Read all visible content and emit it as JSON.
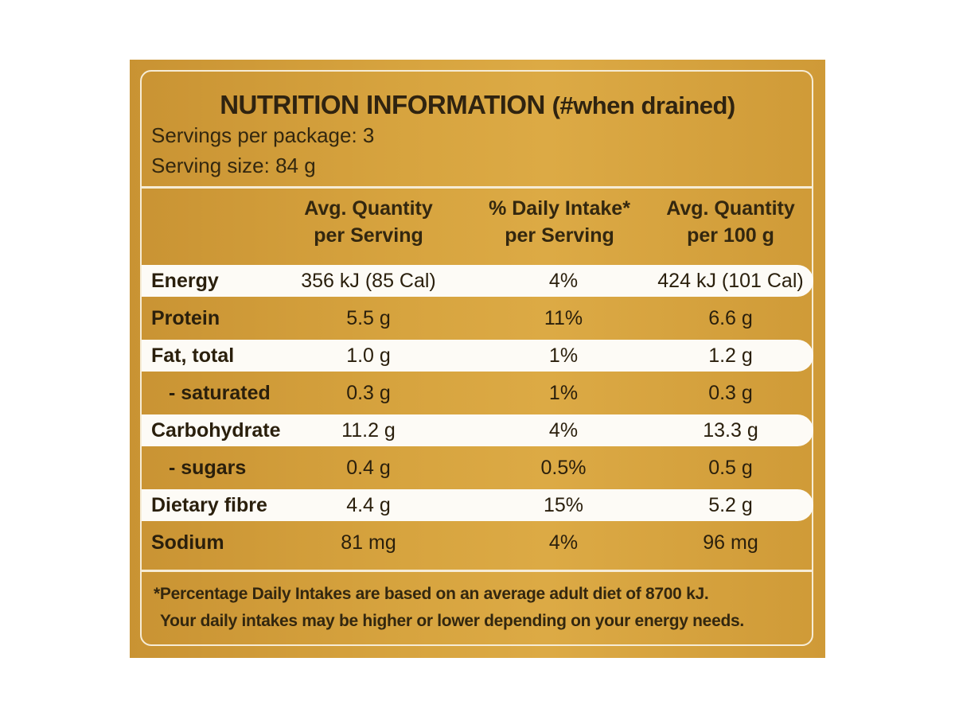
{
  "label": {
    "title": "NUTRITION INFORMATION",
    "title_note": "(#when drained)",
    "servings_per_package": "Servings per package: 3",
    "serving_size": "Serving size: 84 g",
    "columns": [
      {
        "line1": "Avg. Quantity",
        "line2": "per Serving"
      },
      {
        "line1": "% Daily Intake*",
        "line2": "per Serving"
      },
      {
        "line1": "Avg. Quantity",
        "line2": "per 100 g"
      }
    ],
    "rows": [
      {
        "name": "Energy",
        "per_serving": "356 kJ (85 Cal)",
        "daily_intake": "4%",
        "per_100g": "424 kJ (101 Cal)"
      },
      {
        "name": "Protein",
        "per_serving": "5.5 g",
        "daily_intake": "11%",
        "per_100g": "6.6 g"
      },
      {
        "name": "Fat, total",
        "per_serving": "1.0 g",
        "daily_intake": "1%",
        "per_100g": "1.2 g"
      },
      {
        "name": "- saturated",
        "per_serving": "0.3 g",
        "daily_intake": "1%",
        "per_100g": "0.3 g"
      },
      {
        "name": "Carbohydrate",
        "per_serving": "11.2 g",
        "daily_intake": "4%",
        "per_100g": "13.3 g"
      },
      {
        "name": "- sugars",
        "per_serving": "0.4 g",
        "daily_intake": "0.5%",
        "per_100g": "0.5 g"
      },
      {
        "name": "Dietary fibre",
        "per_serving": "4.4 g",
        "daily_intake": "15%",
        "per_100g": "5.2 g"
      },
      {
        "name": "Sodium",
        "per_serving": "81 mg",
        "daily_intake": "4%",
        "per_100g": "96 mg"
      }
    ],
    "footnote_line1": "*Percentage Daily Intakes are based on an average adult diet of 8700 kJ.",
    "footnote_line2": "Your daily intakes may be higher or lower depending on your energy needs."
  },
  "colors": {
    "panel": "#d7a43f",
    "stripe": "#fdfbf6",
    "text": "#2f2310"
  }
}
